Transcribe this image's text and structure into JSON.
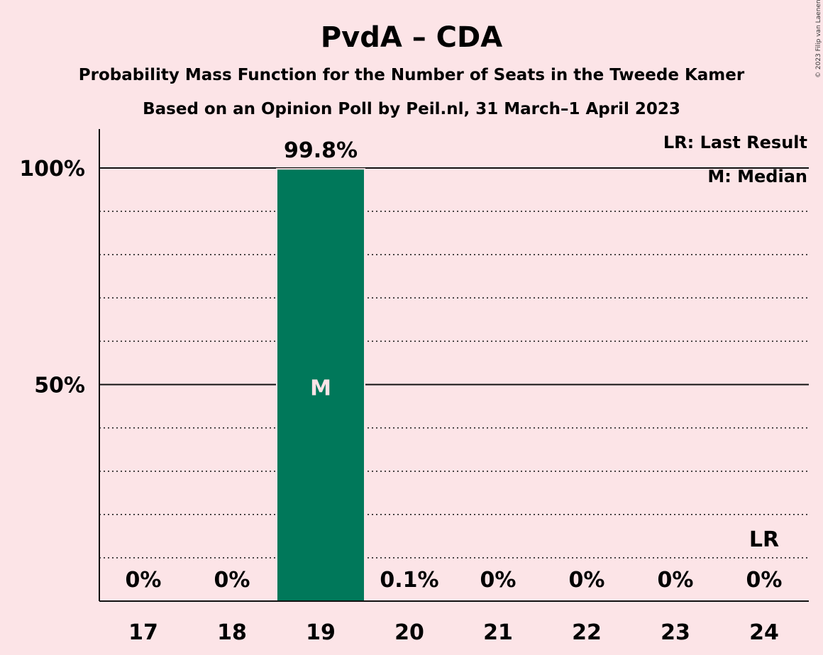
{
  "chart_data": {
    "type": "bar",
    "title": "PvdA – CDA",
    "subtitle_line1": "Probability Mass Function for the Number of Seats in the Tweede Kamer",
    "subtitle_line2": "Based on an Opinion Poll by Peil.nl, 31 March–1 April 2023",
    "copyright": "© 2023 Filip van Laenen",
    "categories": [
      "17",
      "18",
      "19",
      "20",
      "21",
      "22",
      "23",
      "24"
    ],
    "values": [
      0,
      0,
      99.8,
      0.1,
      0,
      0,
      0,
      0
    ],
    "value_labels": [
      "0%",
      "0%",
      "99.8%",
      "0.1%",
      "0%",
      "0%",
      "0%",
      "0%"
    ],
    "ylim": [
      0,
      100
    ],
    "yticks": [
      {
        "value": 50,
        "label": "50%"
      },
      {
        "value": 100,
        "label": "100%"
      }
    ],
    "minor_grid_step": 10,
    "median": {
      "category": "19",
      "label": "M"
    },
    "last_result": {
      "category": "24",
      "label": "LR"
    },
    "legend": {
      "placement": "top-right",
      "entries": [
        "LR: Last Result",
        "M: Median"
      ]
    },
    "bar_color": "#00785a"
  }
}
